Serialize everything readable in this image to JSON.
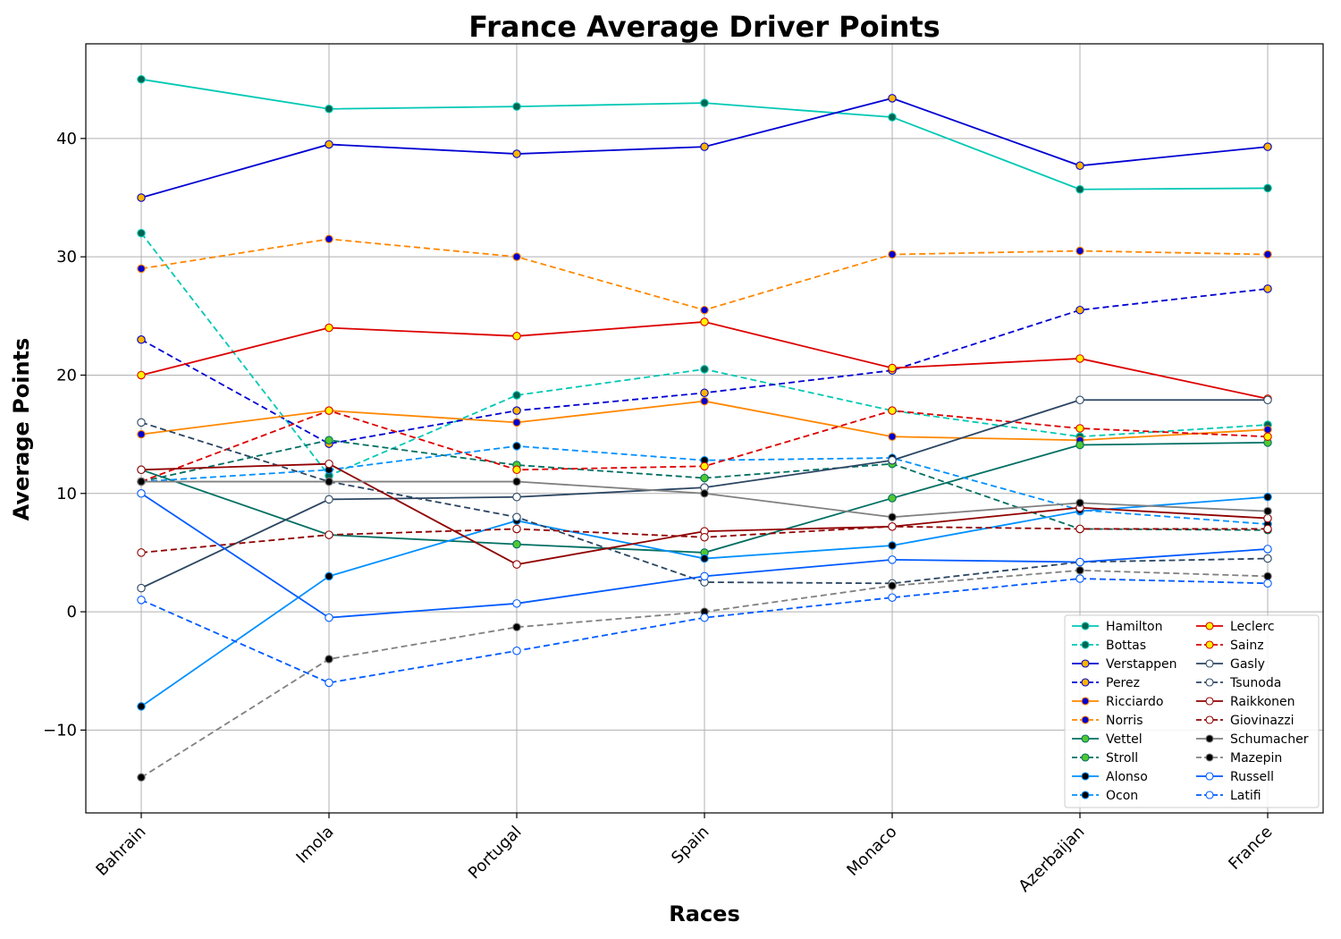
{
  "chart_data": {
    "type": "line",
    "title": "France Average Driver Points",
    "xlabel": "Races",
    "ylabel": "Average Points",
    "categories": [
      "Bahrain",
      "Imola",
      "Portugal",
      "Spain",
      "Monaco",
      "Azerbaijan",
      "France"
    ],
    "ylim": [
      -17,
      48
    ],
    "yticks": [
      -10,
      0,
      10,
      20,
      30,
      40
    ],
    "grid": true,
    "legend_position": "bottom-right",
    "legend_columns": 2,
    "series": [
      {
        "name": "Hamilton",
        "color": "#00c8b4",
        "dash": "solid",
        "marker_fill": "#006450",
        "values": [
          45,
          42.5,
          42.7,
          43,
          41.8,
          35.7,
          35.8
        ]
      },
      {
        "name": "Bottas",
        "color": "#00c8b4",
        "dash": "dashed",
        "marker_fill": "#006450",
        "values": [
          32,
          11.5,
          18.3,
          20.5,
          17,
          14.8,
          15.8
        ]
      },
      {
        "name": "Verstappen",
        "color": "#0000d2",
        "dash": "solid",
        "marker_fill": "#ffb400",
        "values": [
          35,
          39.5,
          38.7,
          39.3,
          43.4,
          37.7,
          39.3
        ]
      },
      {
        "name": "Perez",
        "color": "#0000d2",
        "dash": "dashed",
        "marker_fill": "#ffb400",
        "values": [
          23,
          14.2,
          17,
          18.5,
          20.4,
          25.5,
          27.3
        ]
      },
      {
        "name": "Ricciardo",
        "color": "#ff8700",
        "dash": "solid",
        "marker_fill": "#0000d2",
        "values": [
          15,
          17,
          16,
          17.8,
          14.8,
          14.5,
          15.4
        ]
      },
      {
        "name": "Norris",
        "color": "#ff8700",
        "dash": "dashed",
        "marker_fill": "#0000d2",
        "values": [
          29,
          31.5,
          30,
          25.5,
          30.2,
          30.5,
          30.2
        ]
      },
      {
        "name": "Vettel",
        "color": "#006f62",
        "dash": "solid",
        "marker_fill": "#50c832",
        "values": [
          12,
          6.5,
          5.7,
          5,
          9.6,
          14.1,
          14.3
        ]
      },
      {
        "name": "Stroll",
        "color": "#006f62",
        "dash": "dashed",
        "marker_fill": "#50c832",
        "values": [
          11,
          14.5,
          12.4,
          11.3,
          12.5,
          7,
          6.9
        ]
      },
      {
        "name": "Alonso",
        "color": "#0090ff",
        "dash": "solid",
        "marker_fill": "#000000",
        "values": [
          -8,
          3,
          7.7,
          4.5,
          5.6,
          8.5,
          9.7
        ]
      },
      {
        "name": "Ocon",
        "color": "#0090ff",
        "dash": "dashed",
        "marker_fill": "#000000",
        "values": [
          11,
          12,
          14,
          12.8,
          13,
          8.6,
          7.4
        ]
      },
      {
        "name": "Leclerc",
        "color": "#dc0000",
        "dash": "solid",
        "marker_fill": "#fff500",
        "values": [
          20,
          24,
          23.3,
          24.5,
          20.6,
          21.4,
          18
        ]
      },
      {
        "name": "Sainz",
        "color": "#dc0000",
        "dash": "dashed",
        "marker_fill": "#fff500",
        "values": [
          11,
          17,
          12,
          12.3,
          17,
          15.5,
          14.8
        ]
      },
      {
        "name": "Gasly",
        "color": "#2b4562",
        "dash": "solid",
        "marker_fill": "#ffffff",
        "values": [
          2,
          9.5,
          9.7,
          10.5,
          12.8,
          17.9,
          17.9
        ]
      },
      {
        "name": "Tsunoda",
        "color": "#2b4562",
        "dash": "dashed",
        "marker_fill": "#ffffff",
        "values": [
          16,
          11,
          8,
          2.5,
          2.4,
          4.2,
          4.5
        ]
      },
      {
        "name": "Raikkonen",
        "color": "#900000",
        "dash": "solid",
        "marker_fill": "#ffffff",
        "values": [
          12,
          12.5,
          4,
          6.8,
          7.2,
          8.8,
          7.9
        ]
      },
      {
        "name": "Giovinazzi",
        "color": "#900000",
        "dash": "dashed",
        "marker_fill": "#ffffff",
        "values": [
          5,
          6.5,
          7,
          6.3,
          7.2,
          7,
          7
        ]
      },
      {
        "name": "Schumacher",
        "color": "#808080",
        "dash": "solid",
        "marker_fill": "#000000",
        "values": [
          11,
          11,
          11,
          10,
          8,
          9.2,
          8.5
        ]
      },
      {
        "name": "Mazepin",
        "color": "#808080",
        "dash": "dashed",
        "marker_fill": "#000000",
        "values": [
          -14,
          -4,
          -1.3,
          0,
          2.2,
          3.5,
          3
        ]
      },
      {
        "name": "Russell",
        "color": "#005aff",
        "dash": "solid",
        "marker_fill": "#ffffff",
        "values": [
          10,
          -0.5,
          0.7,
          3,
          4.4,
          4.2,
          5.3
        ]
      },
      {
        "name": "Latifi",
        "color": "#005aff",
        "dash": "dashed",
        "marker_fill": "#ffffff",
        "values": [
          1,
          -6,
          -3.3,
          -0.5,
          1.2,
          2.8,
          2.4
        ]
      }
    ]
  }
}
